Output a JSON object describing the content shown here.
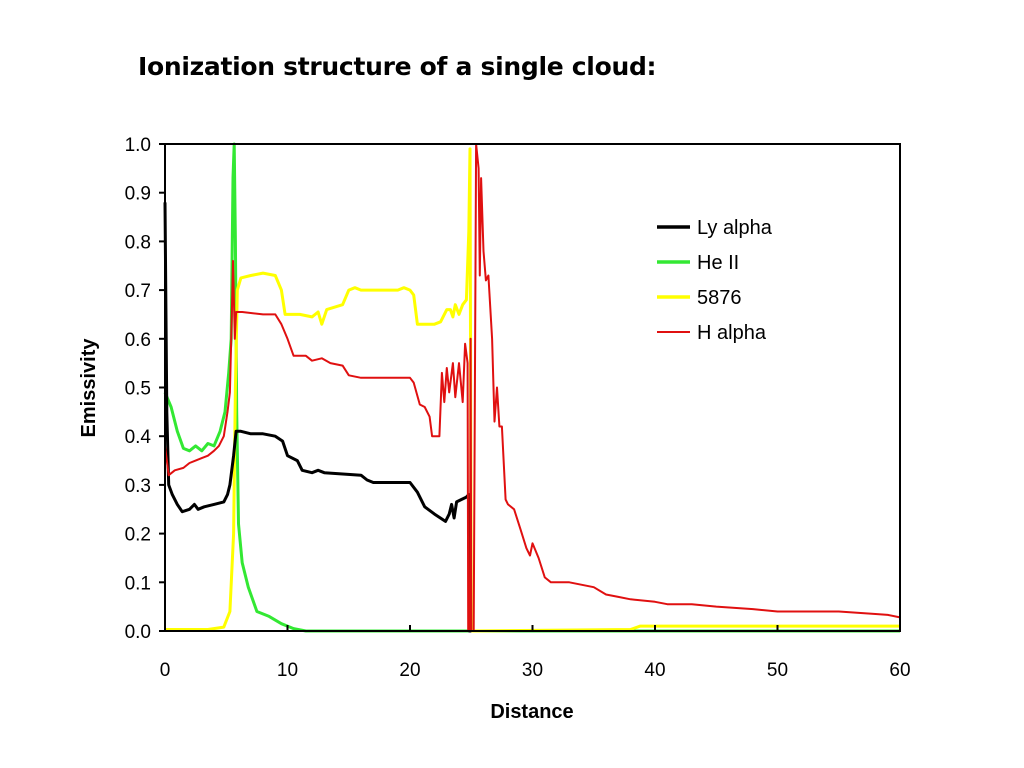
{
  "title": "Ionization structure of a single cloud:",
  "chart_data": {
    "type": "line",
    "xlabel": "Distance",
    "ylabel": "Emissivity",
    "xlim": [
      0,
      60
    ],
    "ylim": [
      0,
      1.0
    ],
    "x_ticks": [
      0,
      10,
      20,
      30,
      40,
      50,
      60
    ],
    "y_ticks": [
      0,
      0.1,
      0.2,
      0.3,
      0.4,
      0.5,
      0.6,
      0.7,
      0.8,
      0.9,
      1.0
    ],
    "x_tick_labels": [
      "0",
      "10",
      "20",
      "30",
      "40",
      "50",
      "60"
    ],
    "y_tick_labels": [
      "0.0",
      "0.1",
      "0.2",
      "0.3",
      "0.4",
      "0.5",
      "0.6",
      "0.7",
      "0.8",
      "0.9",
      "1.0"
    ],
    "grid": false,
    "legend_position": "top-right",
    "series": [
      {
        "name": "Ly alpha",
        "color": "#000000",
        "points": [
          [
            0,
            0.88
          ],
          [
            0.15,
            0.45
          ],
          [
            0.3,
            0.3
          ],
          [
            0.6,
            0.28
          ],
          [
            1.0,
            0.26
          ],
          [
            1.4,
            0.245
          ],
          [
            2.0,
            0.25
          ],
          [
            2.4,
            0.26
          ],
          [
            2.7,
            0.25
          ],
          [
            3.2,
            0.255
          ],
          [
            4.0,
            0.26
          ],
          [
            4.8,
            0.265
          ],
          [
            5.1,
            0.28
          ],
          [
            5.3,
            0.3
          ],
          [
            5.6,
            0.36
          ],
          [
            5.8,
            0.41
          ],
          [
            6.2,
            0.41
          ],
          [
            7.0,
            0.405
          ],
          [
            8.0,
            0.405
          ],
          [
            9.0,
            0.4
          ],
          [
            9.6,
            0.39
          ],
          [
            10.0,
            0.36
          ],
          [
            10.8,
            0.35
          ],
          [
            11.2,
            0.33
          ],
          [
            12.0,
            0.325
          ],
          [
            12.5,
            0.33
          ],
          [
            13.0,
            0.325
          ],
          [
            16.0,
            0.32
          ],
          [
            16.5,
            0.31
          ],
          [
            17.0,
            0.305
          ],
          [
            20.0,
            0.305
          ],
          [
            20.6,
            0.285
          ],
          [
            21.2,
            0.255
          ],
          [
            22.0,
            0.24
          ],
          [
            22.6,
            0.23
          ],
          [
            22.9,
            0.225
          ],
          [
            23.2,
            0.24
          ],
          [
            23.4,
            0.26
          ],
          [
            23.6,
            0.232
          ],
          [
            23.8,
            0.265
          ],
          [
            24.2,
            0.27
          ],
          [
            24.6,
            0.275
          ],
          [
            24.8,
            0.28
          ],
          [
            24.85,
            0.0
          ],
          [
            25.0,
            0.0
          ]
        ]
      },
      {
        "name": "He II",
        "color": "#33e833",
        "points": [
          [
            0,
            0.49
          ],
          [
            0.5,
            0.46
          ],
          [
            1.0,
            0.41
          ],
          [
            1.5,
            0.375
          ],
          [
            2.0,
            0.37
          ],
          [
            2.5,
            0.38
          ],
          [
            3.0,
            0.37
          ],
          [
            3.5,
            0.385
          ],
          [
            4.0,
            0.38
          ],
          [
            4.5,
            0.41
          ],
          [
            4.9,
            0.45
          ],
          [
            5.2,
            0.53
          ],
          [
            5.4,
            0.6
          ],
          [
            5.55,
            0.93
          ],
          [
            5.65,
            1.0
          ],
          [
            5.75,
            0.8
          ],
          [
            5.85,
            0.45
          ],
          [
            6.0,
            0.22
          ],
          [
            6.3,
            0.14
          ],
          [
            6.8,
            0.09
          ],
          [
            7.5,
            0.04
          ],
          [
            8.5,
            0.03
          ],
          [
            9.5,
            0.015
          ],
          [
            10.5,
            0.005
          ],
          [
            11.5,
            0.0
          ],
          [
            60,
            0.0
          ]
        ]
      },
      {
        "name": "5876",
        "color": "#ffff00",
        "points": [
          [
            0,
            0.003
          ],
          [
            3.5,
            0.003
          ],
          [
            4.8,
            0.008
          ],
          [
            5.3,
            0.04
          ],
          [
            5.6,
            0.2
          ],
          [
            5.75,
            0.5
          ],
          [
            5.9,
            0.7
          ],
          [
            6.2,
            0.725
          ],
          [
            7.0,
            0.73
          ],
          [
            8.0,
            0.735
          ],
          [
            9.0,
            0.73
          ],
          [
            9.5,
            0.7
          ],
          [
            9.8,
            0.65
          ],
          [
            11.0,
            0.65
          ],
          [
            12.0,
            0.645
          ],
          [
            12.5,
            0.655
          ],
          [
            12.8,
            0.63
          ],
          [
            13.2,
            0.66
          ],
          [
            14.5,
            0.67
          ],
          [
            15.0,
            0.7
          ],
          [
            15.5,
            0.705
          ],
          [
            16.0,
            0.7
          ],
          [
            19.0,
            0.7
          ],
          [
            19.5,
            0.705
          ],
          [
            20.0,
            0.7
          ],
          [
            20.3,
            0.69
          ],
          [
            20.6,
            0.63
          ],
          [
            22.0,
            0.63
          ],
          [
            22.5,
            0.635
          ],
          [
            23.0,
            0.66
          ],
          [
            23.3,
            0.66
          ],
          [
            23.5,
            0.645
          ],
          [
            23.7,
            0.67
          ],
          [
            24.0,
            0.65
          ],
          [
            24.3,
            0.67
          ],
          [
            24.6,
            0.68
          ],
          [
            24.8,
            0.82
          ],
          [
            24.9,
            0.99
          ],
          [
            25.0,
            0.0
          ],
          [
            38.0,
            0.003
          ],
          [
            38.8,
            0.01
          ],
          [
            60,
            0.01
          ]
        ]
      },
      {
        "name": "H alpha",
        "color": "#e01010",
        "points": [
          [
            0,
            0.38
          ],
          [
            0.3,
            0.32
          ],
          [
            0.8,
            0.33
          ],
          [
            1.5,
            0.335
          ],
          [
            2.0,
            0.345
          ],
          [
            2.5,
            0.35
          ],
          [
            3.0,
            0.355
          ],
          [
            3.5,
            0.36
          ],
          [
            4.0,
            0.37
          ],
          [
            4.4,
            0.38
          ],
          [
            4.8,
            0.4
          ],
          [
            5.1,
            0.45
          ],
          [
            5.3,
            0.49
          ],
          [
            5.45,
            0.65
          ],
          [
            5.55,
            0.76
          ],
          [
            5.7,
            0.6
          ],
          [
            5.8,
            0.655
          ],
          [
            6.3,
            0.655
          ],
          [
            8.0,
            0.65
          ],
          [
            9.0,
            0.65
          ],
          [
            9.5,
            0.63
          ],
          [
            10.0,
            0.6
          ],
          [
            10.5,
            0.565
          ],
          [
            11.5,
            0.565
          ],
          [
            12.0,
            0.555
          ],
          [
            12.8,
            0.56
          ],
          [
            13.5,
            0.55
          ],
          [
            14.5,
            0.545
          ],
          [
            15.0,
            0.525
          ],
          [
            16.0,
            0.52
          ],
          [
            20.0,
            0.52
          ],
          [
            20.3,
            0.51
          ],
          [
            20.8,
            0.465
          ],
          [
            21.2,
            0.46
          ],
          [
            21.6,
            0.44
          ],
          [
            21.8,
            0.4
          ],
          [
            22.4,
            0.4
          ],
          [
            22.6,
            0.53
          ],
          [
            22.8,
            0.47
          ],
          [
            23.0,
            0.54
          ],
          [
            23.2,
            0.49
          ],
          [
            23.5,
            0.55
          ],
          [
            23.7,
            0.48
          ],
          [
            24.0,
            0.55
          ],
          [
            24.3,
            0.47
          ],
          [
            24.5,
            0.59
          ],
          [
            24.7,
            0.55
          ],
          [
            24.75,
            0.0
          ],
          [
            24.9,
            0.0
          ],
          [
            24.95,
            0.6
          ],
          [
            25.0,
            0.0
          ],
          [
            25.2,
            0.0
          ],
          [
            25.4,
            1.0
          ],
          [
            25.6,
            0.95
          ],
          [
            25.7,
            0.73
          ],
          [
            25.8,
            0.93
          ],
          [
            26.0,
            0.78
          ],
          [
            26.2,
            0.72
          ],
          [
            26.4,
            0.73
          ],
          [
            26.7,
            0.6
          ],
          [
            26.9,
            0.43
          ],
          [
            27.1,
            0.5
          ],
          [
            27.3,
            0.42
          ],
          [
            27.5,
            0.42
          ],
          [
            27.8,
            0.27
          ],
          [
            28.0,
            0.26
          ],
          [
            28.5,
            0.25
          ],
          [
            29.0,
            0.21
          ],
          [
            29.5,
            0.17
          ],
          [
            29.8,
            0.155
          ],
          [
            30.0,
            0.18
          ],
          [
            30.5,
            0.15
          ],
          [
            31.0,
            0.11
          ],
          [
            31.5,
            0.1
          ],
          [
            33.0,
            0.1
          ],
          [
            35.0,
            0.09
          ],
          [
            36.0,
            0.075
          ],
          [
            37.0,
            0.07
          ],
          [
            38.0,
            0.065
          ],
          [
            40.0,
            0.06
          ],
          [
            41.0,
            0.055
          ],
          [
            43.0,
            0.055
          ],
          [
            45.0,
            0.05
          ],
          [
            48.0,
            0.045
          ],
          [
            50.0,
            0.04
          ],
          [
            55.0,
            0.04
          ],
          [
            58.0,
            0.035
          ],
          [
            59.0,
            0.033
          ],
          [
            60.0,
            0.028
          ]
        ]
      }
    ]
  }
}
